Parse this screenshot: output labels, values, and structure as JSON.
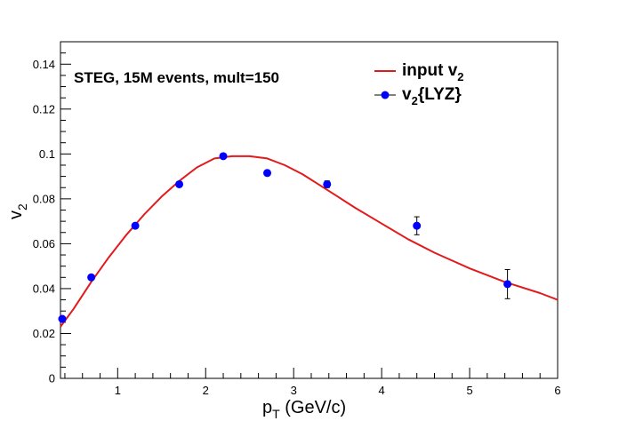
{
  "chart_data": {
    "type": "line",
    "annotation": "STEG, 15M events, mult=150",
    "xlabel": "p",
    "xlabel_sub": "T",
    "xlabel_rest": " (GeV/c)",
    "ylabel": "v",
    "ylabel_sub": "2",
    "xlim": [
      0.35,
      6.0
    ],
    "ylim": [
      0,
      0.15
    ],
    "xticks": [
      1,
      2,
      3,
      4,
      5,
      6
    ],
    "yticks": [
      0,
      0.02,
      0.04,
      0.06,
      0.08,
      0.1,
      0.12,
      0.14
    ],
    "xtick_labels": [
      "1",
      "2",
      "3",
      "4",
      "5",
      "6"
    ],
    "ytick_labels": [
      "0",
      "0.02",
      "0.04",
      "0.06",
      "0.08",
      "0.1",
      "0.12",
      "0.14"
    ],
    "grid": false,
    "legend_position": "top-right",
    "series": [
      {
        "name": "input v",
        "name_sub": "2",
        "name_suffix": "",
        "kind": "line",
        "color": "#e31a1c",
        "x": [
          0.35,
          0.5,
          0.7,
          0.9,
          1.1,
          1.3,
          1.5,
          1.7,
          1.9,
          2.1,
          2.3,
          2.5,
          2.7,
          2.9,
          3.1,
          3.3,
          3.5,
          3.7,
          4.0,
          4.3,
          4.6,
          5.0,
          5.4,
          5.8,
          6.0
        ],
        "y": [
          0.023,
          0.031,
          0.043,
          0.054,
          0.064,
          0.073,
          0.081,
          0.088,
          0.094,
          0.098,
          0.099,
          0.099,
          0.098,
          0.095,
          0.091,
          0.086,
          0.081,
          0.076,
          0.069,
          0.062,
          0.056,
          0.049,
          0.043,
          0.038,
          0.035
        ]
      },
      {
        "name": "v",
        "name_sub": "2",
        "name_suffix": "{LYZ}",
        "kind": "points",
        "color": "#0000ff",
        "x": [
          0.37,
          0.7,
          1.2,
          1.7,
          2.2,
          2.7,
          3.38,
          4.4,
          5.43
        ],
        "y": [
          0.0265,
          0.045,
          0.068,
          0.0865,
          0.099,
          0.0915,
          0.0865,
          0.068,
          0.042
        ],
        "yerr": [
          0.0005,
          0.0005,
          0.0005,
          0.0005,
          0.0005,
          0.0008,
          0.0015,
          0.004,
          0.0065
        ]
      }
    ]
  }
}
